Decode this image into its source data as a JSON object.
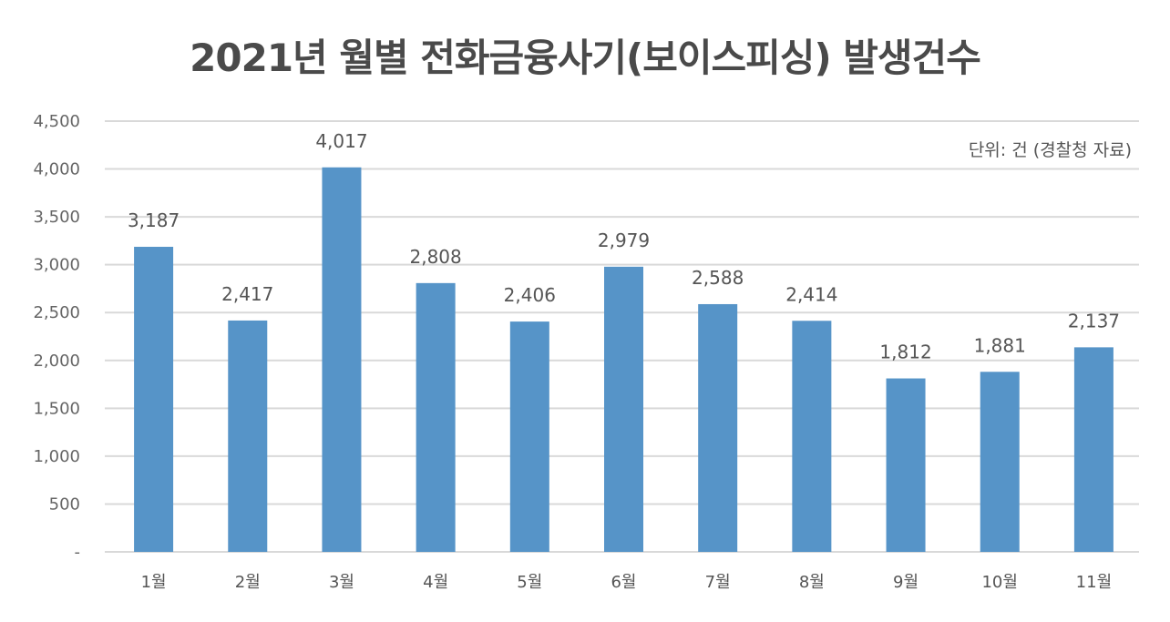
{
  "chart_data": {
    "type": "bar",
    "title": "2021년 월별 전화금융사기(보이스피싱) 발생건수",
    "note": "단위: 건 (경찰청 자료)",
    "categories": [
      "1월",
      "2월",
      "3월",
      "4월",
      "5월",
      "6월",
      "7월",
      "8월",
      "9월",
      "10월",
      "11월"
    ],
    "series": [
      {
        "values": [
          3187,
          2417,
          4017,
          2808,
          2406,
          2979,
          2588,
          2414,
          1812,
          1881,
          2137
        ],
        "labels": [
          "3,187",
          "2,417",
          "4,017",
          "2,808",
          "2,406",
          "2,979",
          "2,588",
          "2,414",
          "1,812",
          "1,881",
          "2,137"
        ]
      }
    ],
    "ylim": [
      0,
      4500
    ],
    "yticks": [
      0,
      500,
      1000,
      1500,
      2000,
      2500,
      3000,
      3500,
      4000,
      4500
    ],
    "ytick_labels": [
      "-",
      "500",
      "1,000",
      "1,500",
      "2,000",
      "2,500",
      "3,000",
      "3,500",
      "4,000",
      "4,500"
    ],
    "xlabel": "",
    "ylabel": "",
    "grid": true,
    "legend": "none",
    "colors": {
      "bar": "#5694c8",
      "grid": "#d9d9d9",
      "title": "#4a4a4a"
    }
  }
}
